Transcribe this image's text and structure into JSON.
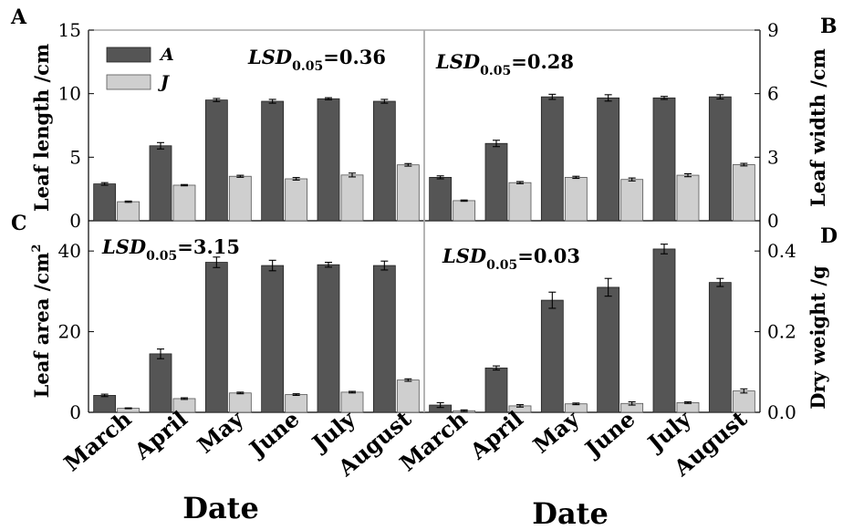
{
  "chart_data": [
    {
      "type": "bar",
      "panel": "A",
      "categories": [
        "March",
        "April",
        "May",
        "June",
        "July",
        "August"
      ],
      "ylabel": "Leaf length /cm",
      "ylim": [
        0,
        15
      ],
      "yticks": [
        "0",
        "5",
        "10",
        "15"
      ],
      "annotation": {
        "lsd_symbol": "LSD",
        "lsd_sub": "0.05",
        "lsd_value": "=0.36"
      },
      "series": [
        {
          "name": "A",
          "values": [
            2.9,
            5.9,
            9.5,
            9.4,
            9.6,
            9.4
          ],
          "errors": [
            0.1,
            0.25,
            0.12,
            0.15,
            0.08,
            0.15
          ]
        },
        {
          "name": "J",
          "values": [
            1.5,
            2.8,
            3.5,
            3.3,
            3.6,
            4.4
          ],
          "errors": [
            0.05,
            0.05,
            0.08,
            0.1,
            0.15,
            0.1
          ]
        }
      ]
    },
    {
      "type": "bar",
      "panel": "B",
      "categories": [
        "March",
        "April",
        "May",
        "June",
        "July",
        "August"
      ],
      "ylabel": "Leaf width /cm",
      "ylim": [
        0,
        9
      ],
      "yticks": [
        "0",
        "3",
        "6",
        "9"
      ],
      "annotation": {
        "lsd_symbol": "LSD",
        "lsd_sub": "0.05",
        "lsd_value": "=0.28"
      },
      "series": [
        {
          "name": "A",
          "values": [
            2.05,
            3.65,
            5.85,
            5.8,
            5.8,
            5.85
          ],
          "errors": [
            0.07,
            0.15,
            0.12,
            0.15,
            0.07,
            0.1
          ]
        },
        {
          "name": "J",
          "values": [
            0.95,
            1.8,
            2.05,
            1.95,
            2.15,
            2.65
          ],
          "errors": [
            0.03,
            0.05,
            0.05,
            0.07,
            0.07,
            0.06
          ]
        }
      ]
    },
    {
      "type": "bar",
      "panel": "C",
      "categories": [
        "March",
        "April",
        "May",
        "June",
        "July",
        "August"
      ],
      "ylabel": "Leaf area /cm2",
      "ylim": [
        0,
        47.5
      ],
      "yticks": [
        "0",
        "20",
        "40"
      ],
      "annotation": {
        "lsd_symbol": "LSD",
        "lsd_sub": "0.05",
        "lsd_value": "=3.15"
      },
      "series": [
        {
          "name": "A",
          "values": [
            4.2,
            14.5,
            37.2,
            36.4,
            36.6,
            36.4
          ],
          "errors": [
            0.3,
            1.2,
            1.3,
            1.3,
            0.6,
            1.1
          ]
        },
        {
          "name": "J",
          "values": [
            1.0,
            3.4,
            4.8,
            4.4,
            5.0,
            8.0
          ],
          "errors": [
            0.1,
            0.2,
            0.2,
            0.2,
            0.2,
            0.3
          ]
        }
      ]
    },
    {
      "type": "bar",
      "panel": "D",
      "categories": [
        "March",
        "April",
        "May",
        "June",
        "July",
        "August"
      ],
      "ylabel": "Dry weight /g",
      "ylim": [
        0,
        0.475
      ],
      "yticks": [
        "0.0",
        "0.2",
        "0.4"
      ],
      "annotation": {
        "lsd_symbol": "LSD",
        "lsd_sub": "0.05",
        "lsd_value": "=0.03"
      },
      "series": [
        {
          "name": "A",
          "values": [
            0.018,
            0.11,
            0.278,
            0.31,
            0.405,
            0.322
          ],
          "errors": [
            0.006,
            0.005,
            0.02,
            0.022,
            0.012,
            0.01
          ]
        },
        {
          "name": "J",
          "values": [
            0.004,
            0.016,
            0.021,
            0.022,
            0.024,
            0.053
          ],
          "errors": [
            0.002,
            0.003,
            0.002,
            0.004,
            0.002,
            0.005
          ]
        }
      ]
    }
  ],
  "legend": [
    {
      "name": "A",
      "color": "#555555"
    },
    {
      "name": "J",
      "color": "#cfcfcf"
    }
  ],
  "xlabel": "Date",
  "ylabel_C_superscript": "2",
  "colors": {
    "series_A": "#555555",
    "series_J": "#cfcfcf",
    "frame": "#aaaaaa"
  }
}
